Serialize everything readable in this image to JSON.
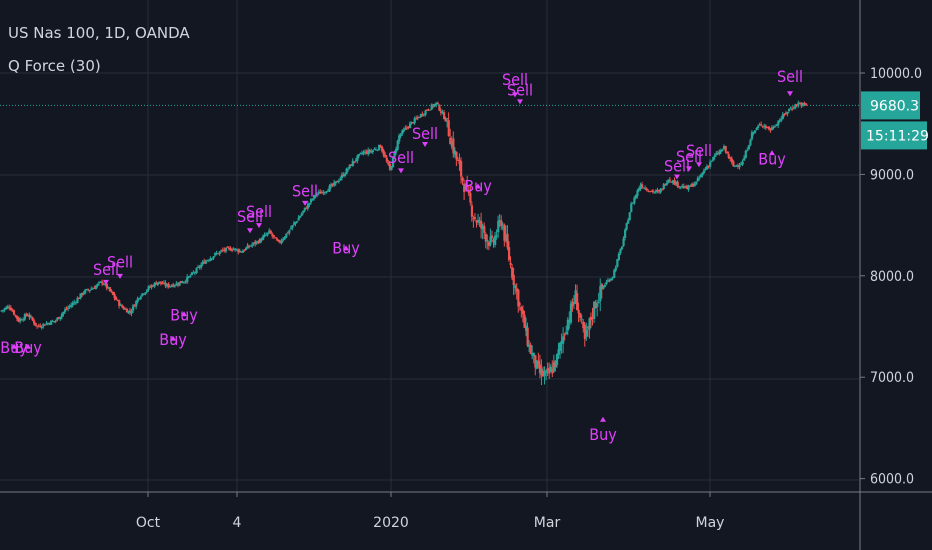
{
  "header": {
    "symbol_line": "US Nas 100, 1D, OANDA",
    "indicator_line": "Q Force (30)"
  },
  "price_axis": {
    "ticks": [
      "10000.0",
      "9000.0",
      "8000.0",
      "7000.0",
      "6000.0"
    ],
    "last_price": "9680.3",
    "countdown": "15:11:29"
  },
  "time_axis": {
    "ticks": [
      "Oct",
      "4",
      "2020",
      "Mar",
      "May"
    ]
  },
  "colors": {
    "background": "#131722",
    "grid": "#2a2e39",
    "up": "#26a69a",
    "down": "#ef5350",
    "signal": "#e040fb",
    "price_line": "#26a69a",
    "text": "#d1d4dc"
  },
  "chart_data": {
    "type": "candlestick",
    "title": "US Nas 100, 1D, OANDA",
    "indicator": "Q Force (30)",
    "ylim": [
      5950,
      10270
    ],
    "grid": true,
    "last_price": 9680.3,
    "x_ticks": [
      "Oct",
      "4",
      "2020",
      "Mar",
      "May"
    ],
    "y_ticks": [
      10000,
      9000,
      8000,
      7000,
      6000
    ],
    "close_path": [
      [
        0,
        7650
      ],
      [
        6,
        7700
      ],
      [
        12,
        7560
      ],
      [
        18,
        7620
      ],
      [
        24,
        7500
      ],
      [
        30,
        7530
      ],
      [
        36,
        7560
      ],
      [
        42,
        7660
      ],
      [
        48,
        7740
      ],
      [
        54,
        7840
      ],
      [
        60,
        7880
      ],
      [
        66,
        7940
      ],
      [
        72,
        7830
      ],
      [
        78,
        7700
      ],
      [
        84,
        7640
      ],
      [
        90,
        7800
      ],
      [
        96,
        7880
      ],
      [
        102,
        7940
      ],
      [
        108,
        7900
      ],
      [
        114,
        7920
      ],
      [
        120,
        7960
      ],
      [
        126,
        8040
      ],
      [
        132,
        8140
      ],
      [
        138,
        8200
      ],
      [
        144,
        8250
      ],
      [
        150,
        8270
      ],
      [
        156,
        8240
      ],
      [
        162,
        8300
      ],
      [
        168,
        8350
      ],
      [
        174,
        8430
      ],
      [
        180,
        8320
      ],
      [
        186,
        8430
      ],
      [
        192,
        8550
      ],
      [
        198,
        8680
      ],
      [
        204,
        8800
      ],
      [
        210,
        8840
      ],
      [
        216,
        8900
      ],
      [
        222,
        9000
      ],
      [
        228,
        9120
      ],
      [
        234,
        9210
      ],
      [
        240,
        9230
      ],
      [
        246,
        9280
      ],
      [
        252,
        9040
      ],
      [
        258,
        9380
      ],
      [
        264,
        9480
      ],
      [
        270,
        9560
      ],
      [
        276,
        9640
      ],
      [
        282,
        9700
      ],
      [
        288,
        9540
      ],
      [
        294,
        9200
      ],
      [
        300,
        8900
      ],
      [
        306,
        8600
      ],
      [
        312,
        8450
      ],
      [
        318,
        8300
      ],
      [
        324,
        8550
      ],
      [
        330,
        8100
      ],
      [
        336,
        7700
      ],
      [
        342,
        7300
      ],
      [
        348,
        7050
      ],
      [
        354,
        7000
      ],
      [
        360,
        7180
      ],
      [
        366,
        7520
      ],
      [
        372,
        7800
      ],
      [
        378,
        7350
      ],
      [
        384,
        7700
      ],
      [
        390,
        7900
      ],
      [
        396,
        8000
      ],
      [
        402,
        8300
      ],
      [
        408,
        8700
      ],
      [
        414,
        8900
      ],
      [
        420,
        8840
      ],
      [
        426,
        8820
      ],
      [
        432,
        8960
      ],
      [
        438,
        8900
      ],
      [
        444,
        8860
      ],
      [
        450,
        8920
      ],
      [
        456,
        9060
      ],
      [
        462,
        9180
      ],
      [
        468,
        9260
      ],
      [
        474,
        9080
      ],
      [
        480,
        9120
      ],
      [
        486,
        9400
      ],
      [
        492,
        9500
      ],
      [
        498,
        9440
      ],
      [
        504,
        9540
      ],
      [
        510,
        9640
      ],
      [
        516,
        9700
      ],
      [
        521,
        9680
      ]
    ],
    "sell_signals": [
      {
        "label": "Sell",
        "price": 9880,
        "marker": 9770
      },
      {
        "label": "Sell",
        "price": 9780,
        "marker": 9700
      },
      {
        "label": "Sell",
        "price": 9350,
        "marker": 9280
      },
      {
        "label": "Sell",
        "price": 9110,
        "marker": 9020
      },
      {
        "label": "Sell",
        "price": 8780,
        "marker": 8700
      },
      {
        "label": "Sell",
        "price": 8580,
        "marker": 8480
      },
      {
        "label": "Sell",
        "price": 8530,
        "marker": 8430
      },
      {
        "label": "Sell",
        "price": 8080,
        "marker": 7980
      },
      {
        "label": "Sell",
        "price": 8010,
        "marker": 7920
      },
      {
        "label": "Sell",
        "price": 9030,
        "marker": 8960
      },
      {
        "label": "Sell",
        "price": 9120,
        "marker": 9040
      },
      {
        "label": "Sell",
        "price": 9180,
        "marker": 9080
      },
      {
        "label": "Sell",
        "price": 9910,
        "marker": 9780
      }
    ],
    "buy_signals": [
      {
        "label": "Buy",
        "price": 8830,
        "marker": 8900
      },
      {
        "label": "Buy",
        "price": 8220,
        "marker": 8290
      },
      {
        "label": "Buy",
        "price": 7560,
        "marker": 7640
      },
      {
        "label": "Buy",
        "price": 7320,
        "marker": 7400
      },
      {
        "label": "Buy",
        "price": 7240,
        "marker": 7320
      },
      {
        "label": "Buy",
        "price": 7240,
        "marker": 7320
      },
      {
        "label": "Buy",
        "price": 6380,
        "marker": 6600
      },
      {
        "label": "Buy",
        "price": 9100,
        "marker": 9230
      }
    ]
  }
}
